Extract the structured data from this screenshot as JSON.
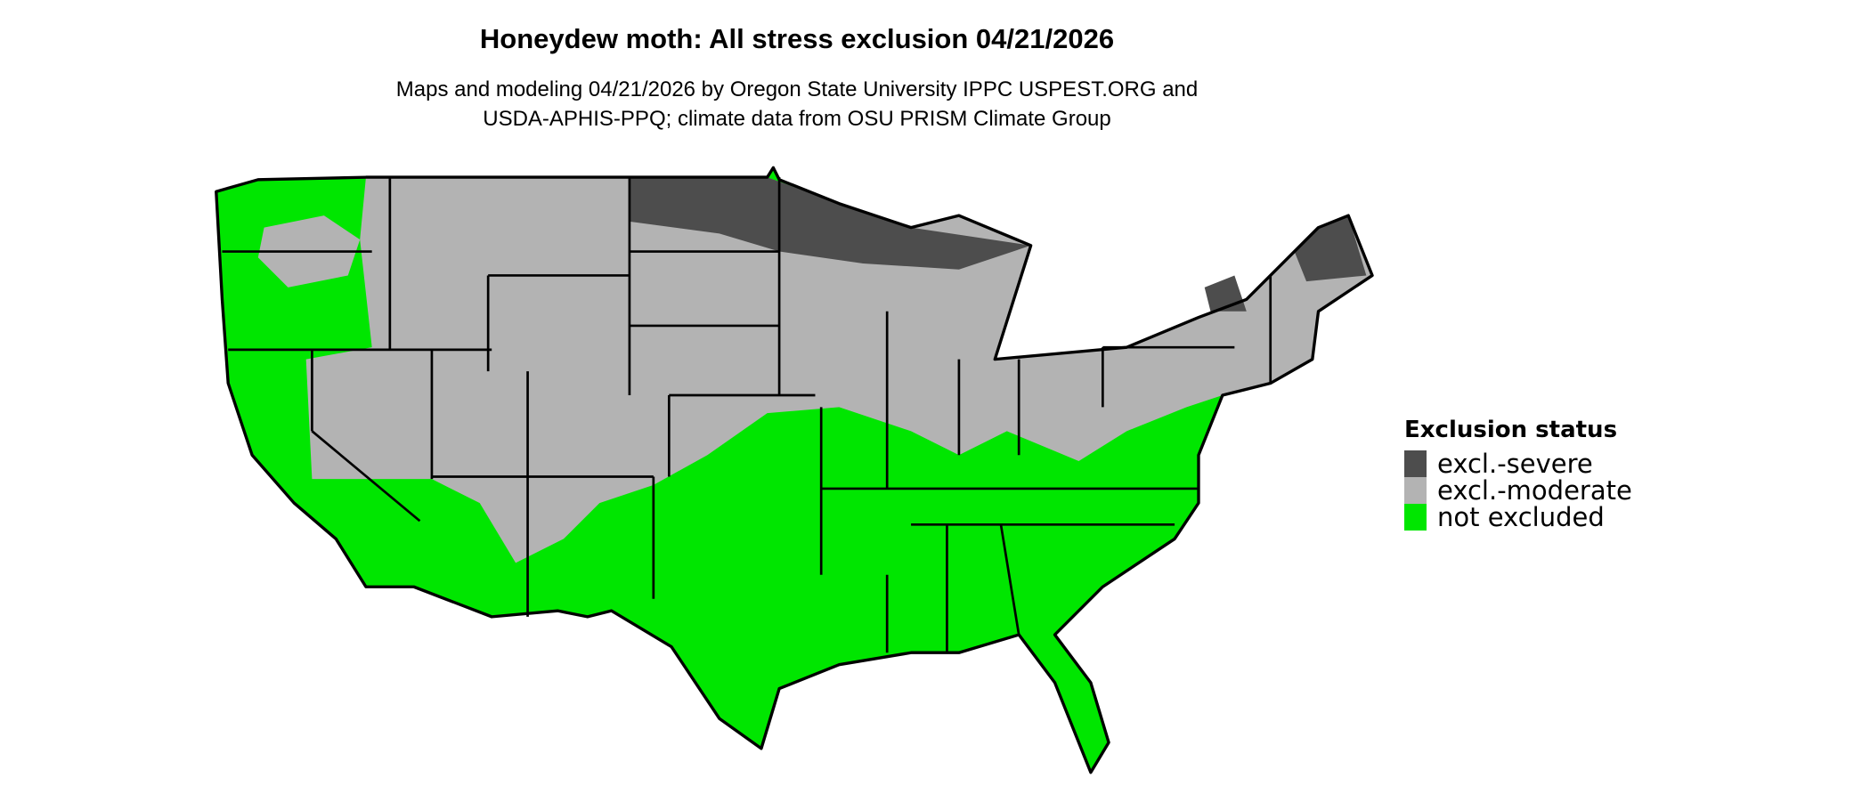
{
  "title": "Honeydew moth: All stress exclusion 04/21/2026",
  "subtitle_line1": "Maps and modeling 04/21/2026 by Oregon State University IPPC USPEST.ORG and",
  "subtitle_line2": "USDA-APHIS-PPQ; climate data from OSU PRISM Climate Group",
  "legend": {
    "title": "Exclusion status",
    "items": [
      {
        "label": "excl.-severe",
        "color": "#4d4d4d"
      },
      {
        "label": "excl.-moderate",
        "color": "#b3b3b3"
      },
      {
        "label": "not excluded",
        "color": "#00e600"
      }
    ]
  }
}
